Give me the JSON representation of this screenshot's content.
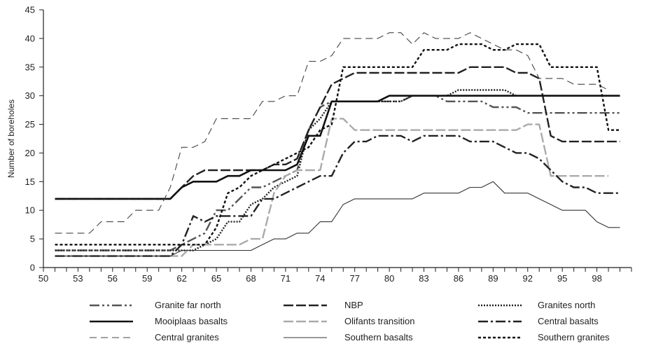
{
  "chart_data": {
    "type": "line",
    "title": "",
    "xlabel": "",
    "ylabel": "Number of boreholes",
    "xlim": [
      50,
      101
    ],
    "ylim": [
      0,
      45
    ],
    "x_ticks": [
      "50",
      "53",
      "56",
      "59",
      "62",
      "65",
      "68",
      "71",
      "74",
      "77",
      "80",
      "83",
      "86",
      "89",
      "92",
      "95",
      "98"
    ],
    "y_ticks": [
      "0",
      "5",
      "10",
      "15",
      "20",
      "25",
      "30",
      "35",
      "40",
      "45"
    ],
    "grid": false,
    "legend_position": "bottom",
    "series": [
      {
        "name": "Granite far north",
        "color": "#555555",
        "dash": "14,4,3,4,3,4",
        "points": [
          [
            51,
            3
          ],
          [
            61,
            3
          ],
          [
            62,
            4
          ],
          [
            63,
            5
          ],
          [
            64,
            6
          ],
          [
            65,
            10
          ],
          [
            66,
            10
          ],
          [
            67,
            12
          ],
          [
            68,
            14
          ],
          [
            69,
            14
          ],
          [
            70,
            15
          ],
          [
            71,
            16
          ],
          [
            72,
            17
          ],
          [
            73,
            24
          ],
          [
            74,
            28
          ],
          [
            75,
            29
          ],
          [
            76,
            29
          ],
          [
            80,
            29
          ],
          [
            81,
            29
          ],
          [
            82,
            30
          ],
          [
            83,
            30
          ],
          [
            84,
            30
          ],
          [
            85,
            29
          ],
          [
            86,
            29
          ],
          [
            88,
            29
          ],
          [
            89,
            28
          ],
          [
            90,
            28
          ],
          [
            91,
            28
          ],
          [
            92,
            27
          ],
          [
            93,
            27
          ],
          [
            100,
            27
          ]
        ]
      },
      {
        "name": "NBP",
        "color": "#222222",
        "dash": "14,4",
        "points": [
          [
            51,
            12
          ],
          [
            61,
            12
          ],
          [
            62,
            14
          ],
          [
            63,
            16
          ],
          [
            64,
            17
          ],
          [
            65,
            17
          ],
          [
            66,
            17
          ],
          [
            67,
            17
          ],
          [
            68,
            17
          ],
          [
            69,
            17
          ],
          [
            70,
            18
          ],
          [
            71,
            18
          ],
          [
            72,
            19
          ],
          [
            73,
            24
          ],
          [
            74,
            28
          ],
          [
            75,
            32
          ],
          [
            76,
            33
          ],
          [
            77,
            34
          ],
          [
            78,
            34
          ],
          [
            85,
            34
          ],
          [
            86,
            34
          ],
          [
            87,
            35
          ],
          [
            88,
            35
          ],
          [
            89,
            35
          ],
          [
            90,
            35
          ],
          [
            91,
            34
          ],
          [
            92,
            34
          ],
          [
            93,
            33
          ],
          [
            94,
            23
          ],
          [
            95,
            22
          ],
          [
            100,
            22
          ]
        ]
      },
      {
        "name": "Granites north",
        "color": "#222222",
        "dash": "2,2",
        "points": [
          [
            51,
            3
          ],
          [
            61,
            3
          ],
          [
            62,
            3
          ],
          [
            63,
            3
          ],
          [
            64,
            4
          ],
          [
            65,
            5
          ],
          [
            66,
            8
          ],
          [
            67,
            8
          ],
          [
            68,
            11
          ],
          [
            69,
            12
          ],
          [
            70,
            14
          ],
          [
            71,
            15
          ],
          [
            72,
            16
          ],
          [
            73,
            24
          ],
          [
            74,
            26
          ],
          [
            75,
            29
          ],
          [
            76,
            29
          ],
          [
            80,
            29
          ],
          [
            81,
            29
          ],
          [
            82,
            30
          ],
          [
            85,
            30
          ],
          [
            86,
            31
          ],
          [
            89,
            31
          ],
          [
            90,
            31
          ],
          [
            91,
            30
          ],
          [
            92,
            30
          ],
          [
            100,
            30
          ]
        ]
      },
      {
        "name": "Mooiplaas basalts",
        "color": "#111111",
        "dash": "",
        "points": [
          [
            51,
            12
          ],
          [
            61,
            12
          ],
          [
            62,
            14
          ],
          [
            63,
            15
          ],
          [
            64,
            15
          ],
          [
            65,
            15
          ],
          [
            66,
            16
          ],
          [
            67,
            16
          ],
          [
            68,
            17
          ],
          [
            69,
            17
          ],
          [
            70,
            17
          ],
          [
            71,
            17
          ],
          [
            72,
            18
          ],
          [
            73,
            23
          ],
          [
            74,
            23
          ],
          [
            75,
            29
          ],
          [
            76,
            29
          ],
          [
            79,
            29
          ],
          [
            80,
            30
          ],
          [
            82,
            30
          ],
          [
            83,
            30
          ],
          [
            100,
            30
          ]
        ]
      },
      {
        "name": "Olifants transition",
        "color": "#aaaaaa",
        "dash": "14,4",
        "points": [
          [
            51,
            2
          ],
          [
            61,
            2
          ],
          [
            62,
            2
          ],
          [
            63,
            4
          ],
          [
            64,
            4
          ],
          [
            65,
            4
          ],
          [
            66,
            4
          ],
          [
            67,
            4
          ],
          [
            68,
            5
          ],
          [
            69,
            5
          ],
          [
            70,
            13
          ],
          [
            71,
            16
          ],
          [
            72,
            17
          ],
          [
            73,
            17
          ],
          [
            74,
            17
          ],
          [
            75,
            26
          ],
          [
            76,
            26
          ],
          [
            77,
            24
          ],
          [
            90,
            24
          ],
          [
            91,
            24
          ],
          [
            92,
            25
          ],
          [
            93,
            25
          ],
          [
            94,
            16
          ],
          [
            99,
            16
          ]
        ]
      },
      {
        "name": "Central basalts",
        "color": "#222222",
        "dash": "14,4,3,4",
        "points": [
          [
            51,
            2
          ],
          [
            61,
            2
          ],
          [
            62,
            4
          ],
          [
            63,
            9
          ],
          [
            64,
            8
          ],
          [
            65,
            9
          ],
          [
            66,
            9
          ],
          [
            67,
            9
          ],
          [
            68,
            9
          ],
          [
            69,
            12
          ],
          [
            70,
            12
          ],
          [
            71,
            13
          ],
          [
            72,
            14
          ],
          [
            73,
            15
          ],
          [
            74,
            16
          ],
          [
            75,
            16
          ],
          [
            76,
            20
          ],
          [
            77,
            22
          ],
          [
            78,
            22
          ],
          [
            79,
            23
          ],
          [
            81,
            23
          ],
          [
            82,
            22
          ],
          [
            83,
            23
          ],
          [
            86,
            23
          ],
          [
            87,
            22
          ],
          [
            89,
            22
          ],
          [
            90,
            21
          ],
          [
            91,
            20
          ],
          [
            92,
            20
          ],
          [
            93,
            19
          ],
          [
            94,
            17
          ],
          [
            95,
            15
          ],
          [
            96,
            14
          ],
          [
            97,
            14
          ],
          [
            98,
            13
          ],
          [
            100,
            13
          ]
        ]
      },
      {
        "name": "Central granites",
        "color": "#444444",
        "dash": "10,6",
        "points": [
          [
            51,
            6
          ],
          [
            54,
            6
          ],
          [
            55,
            8
          ],
          [
            56,
            8
          ],
          [
            57,
            8
          ],
          [
            58,
            10
          ],
          [
            59,
            10
          ],
          [
            60,
            10
          ],
          [
            61,
            14
          ],
          [
            62,
            21
          ],
          [
            63,
            21
          ],
          [
            64,
            22
          ],
          [
            65,
            26
          ],
          [
            66,
            26
          ],
          [
            67,
            26
          ],
          [
            68,
            26
          ],
          [
            69,
            29
          ],
          [
            70,
            29
          ],
          [
            71,
            30
          ],
          [
            72,
            30
          ],
          [
            73,
            36
          ],
          [
            74,
            36
          ],
          [
            75,
            37
          ],
          [
            76,
            40
          ],
          [
            77,
            40
          ],
          [
            78,
            40
          ],
          [
            79,
            40
          ],
          [
            80,
            41
          ],
          [
            81,
            41
          ],
          [
            82,
            39
          ],
          [
            83,
            41
          ],
          [
            84,
            40
          ],
          [
            85,
            40
          ],
          [
            86,
            40
          ],
          [
            87,
            41
          ],
          [
            88,
            40
          ],
          [
            89,
            39
          ],
          [
            90,
            38
          ],
          [
            91,
            38
          ],
          [
            92,
            37
          ],
          [
            93,
            33
          ],
          [
            94,
            33
          ],
          [
            95,
            33
          ],
          [
            96,
            32
          ],
          [
            97,
            32
          ],
          [
            98,
            32
          ],
          [
            99,
            31
          ]
        ]
      },
      {
        "name": "Southern basalts",
        "color": "#333333",
        "dash": "",
        "points": [
          [
            51,
            2
          ],
          [
            61,
            2
          ],
          [
            62,
            3
          ],
          [
            63,
            3
          ],
          [
            64,
            3
          ],
          [
            65,
            3
          ],
          [
            66,
            3
          ],
          [
            67,
            3
          ],
          [
            68,
            3
          ],
          [
            69,
            4
          ],
          [
            70,
            5
          ],
          [
            71,
            5
          ],
          [
            72,
            6
          ],
          [
            73,
            6
          ],
          [
            74,
            8
          ],
          [
            75,
            8
          ],
          [
            76,
            11
          ],
          [
            77,
            12
          ],
          [
            78,
            12
          ],
          [
            79,
            12
          ],
          [
            80,
            12
          ],
          [
            81,
            12
          ],
          [
            82,
            12
          ],
          [
            83,
            13
          ],
          [
            84,
            13
          ],
          [
            85,
            13
          ],
          [
            86,
            13
          ],
          [
            87,
            14
          ],
          [
            88,
            14
          ],
          [
            89,
            15
          ],
          [
            90,
            13
          ],
          [
            91,
            13
          ],
          [
            92,
            13
          ],
          [
            93,
            12
          ],
          [
            94,
            11
          ],
          [
            95,
            10
          ],
          [
            96,
            10
          ],
          [
            97,
            10
          ],
          [
            98,
            8
          ],
          [
            99,
            7
          ],
          [
            100,
            7
          ]
        ]
      },
      {
        "name": "Southern granites",
        "color": "#111111",
        "dash": "4,3",
        "points": [
          [
            51,
            4
          ],
          [
            61,
            4
          ],
          [
            62,
            4
          ],
          [
            63,
            4
          ],
          [
            64,
            4
          ],
          [
            65,
            7
          ],
          [
            66,
            13
          ],
          [
            67,
            14
          ],
          [
            68,
            16
          ],
          [
            69,
            17
          ],
          [
            70,
            18
          ],
          [
            71,
            19
          ],
          [
            72,
            20
          ],
          [
            73,
            21
          ],
          [
            74,
            24
          ],
          [
            75,
            25
          ],
          [
            76,
            35
          ],
          [
            77,
            35
          ],
          [
            80,
            35
          ],
          [
            81,
            35
          ],
          [
            82,
            35
          ],
          [
            83,
            38
          ],
          [
            84,
            38
          ],
          [
            85,
            38
          ],
          [
            86,
            39
          ],
          [
            87,
            39
          ],
          [
            88,
            39
          ],
          [
            89,
            38
          ],
          [
            90,
            38
          ],
          [
            91,
            39
          ],
          [
            92,
            39
          ],
          [
            93,
            39
          ],
          [
            94,
            35
          ],
          [
            95,
            35
          ],
          [
            96,
            35
          ],
          [
            97,
            35
          ],
          [
            98,
            35
          ],
          [
            99,
            24
          ],
          [
            100,
            24
          ]
        ]
      }
    ]
  }
}
